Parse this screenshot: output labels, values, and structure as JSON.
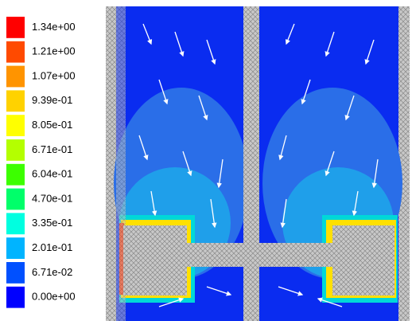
{
  "colorbar": [
    {
      "label": "1.34e+00",
      "color": "#ff0000"
    },
    {
      "label": "1.21e+00",
      "color": "#ff4a00"
    },
    {
      "label": "1.07e+00",
      "color": "#ff9400"
    },
    {
      "label": "9.39e-01",
      "color": "#ffd200"
    },
    {
      "label": "8.05e-01",
      "color": "#ffff00"
    },
    {
      "label": "6.71e-01",
      "color": "#b4ff00"
    },
    {
      "label": "6.04e-01",
      "color": "#3cff00"
    },
    {
      "label": "4.70e-01",
      "color": "#00ff6a"
    },
    {
      "label": "3.35e-01",
      "color": "#00ffe0"
    },
    {
      "label": "2.01e-01",
      "color": "#00b4ff"
    },
    {
      "label": "6.71e-02",
      "color": "#0050ff"
    },
    {
      "label": "0.00e+00",
      "color": "#0000ff"
    }
  ]
}
